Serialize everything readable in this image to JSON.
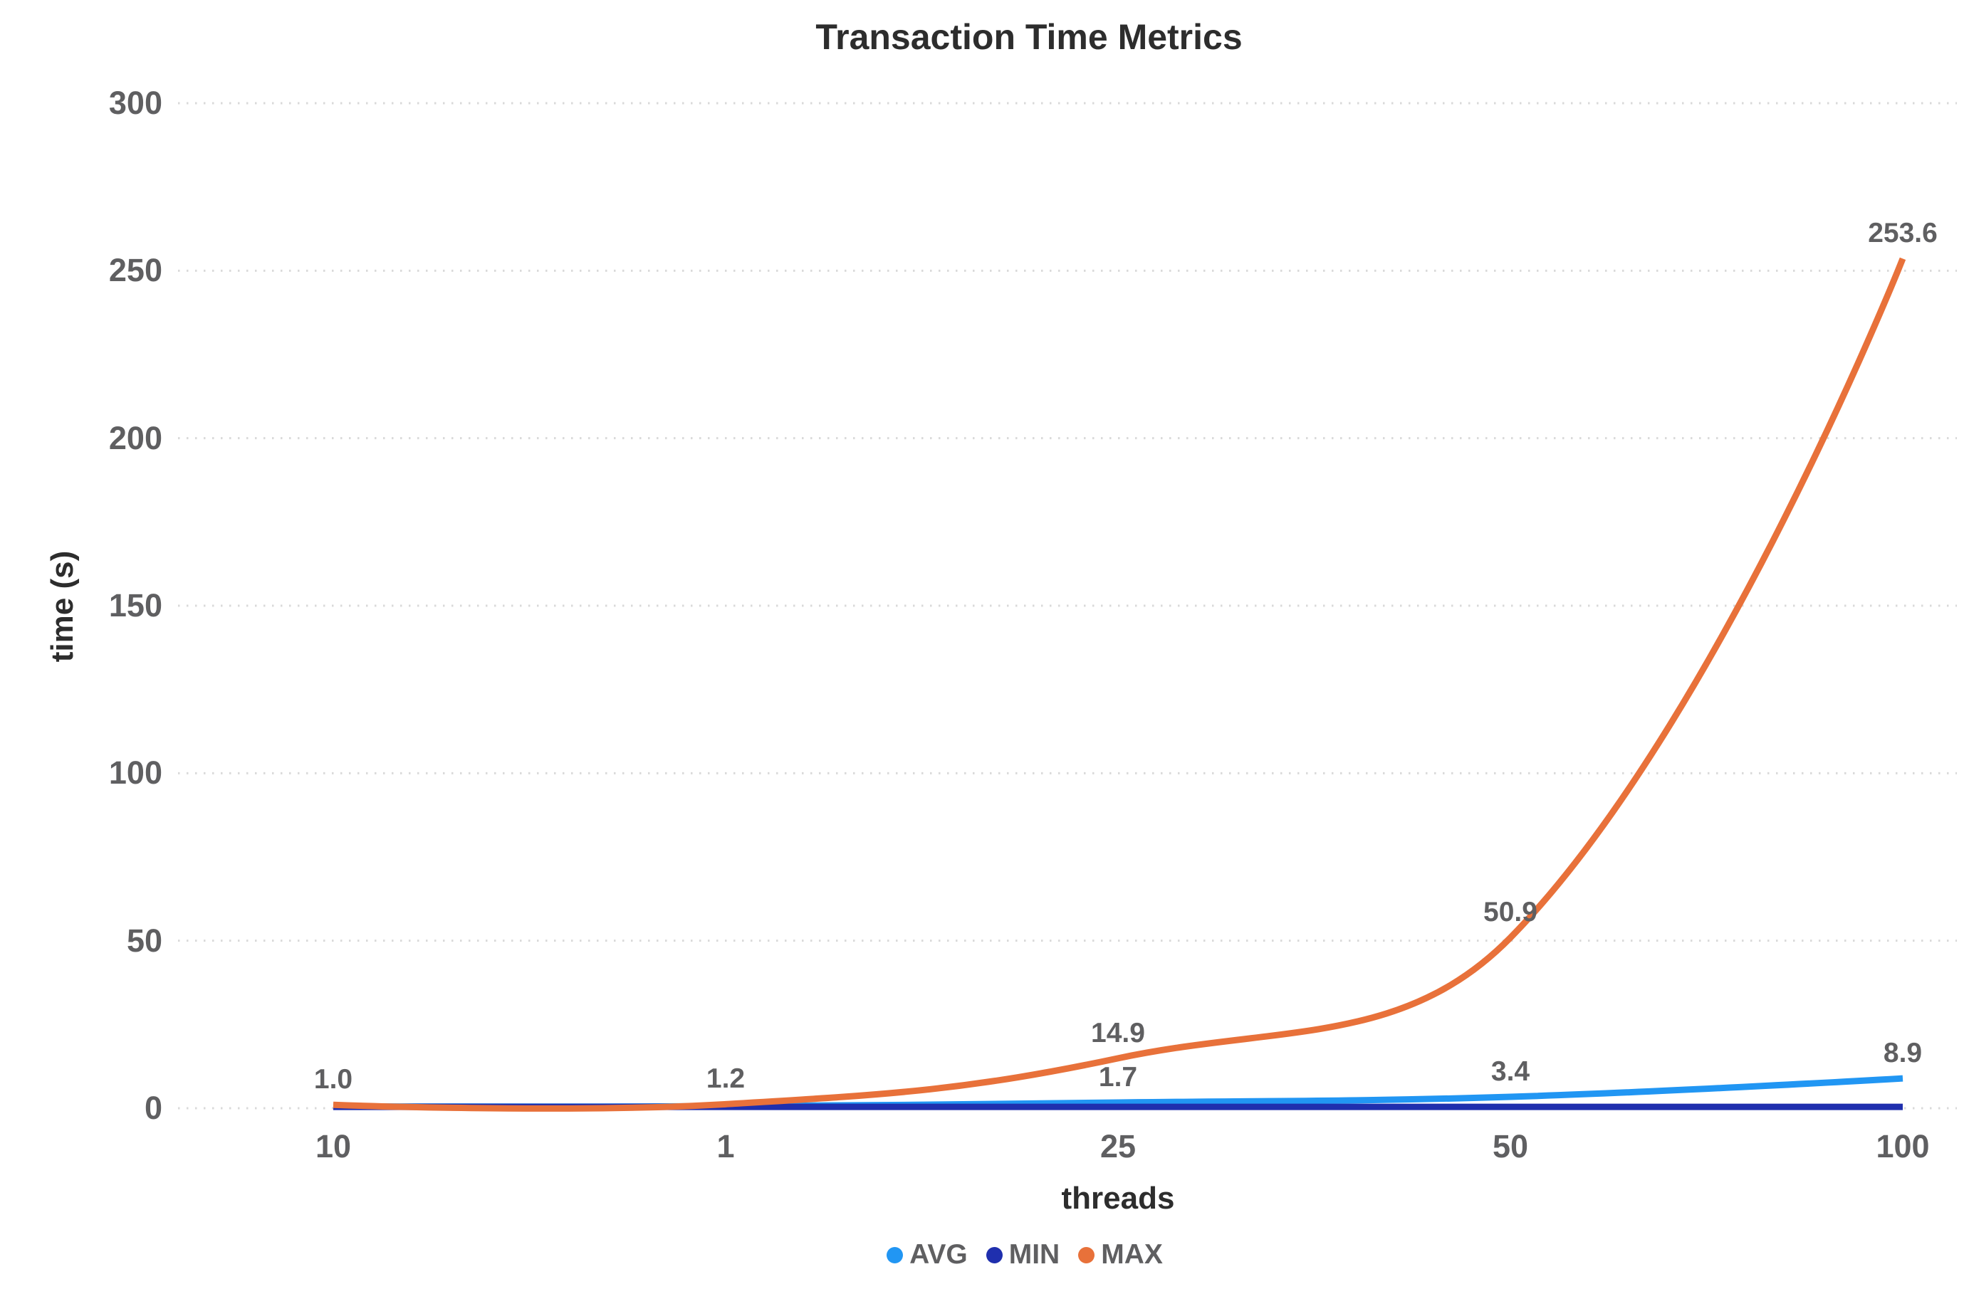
{
  "chart_data": {
    "type": "line",
    "title": "Transaction Time Metrics",
    "xlabel": "threads",
    "ylabel": "time (s)",
    "categories": [
      "10",
      "1",
      "25",
      "50",
      "100"
    ],
    "ylim": [
      0,
      300
    ],
    "yticks": [
      0,
      50,
      100,
      150,
      200,
      250,
      300
    ],
    "grid": "dotted-horizontal",
    "grid_color": "#d9d9d9",
    "legend_position": "bottom",
    "series": [
      {
        "name": "AVG",
        "color": "#2196f3",
        "values": [
          0.5,
          0.6,
          1.7,
          3.4,
          8.9
        ],
        "point_labels": [
          "",
          "",
          "1.7",
          "3.4",
          "8.9"
        ]
      },
      {
        "name": "MIN",
        "color": "#1f2fae",
        "values": [
          0.4,
          0.4,
          0.4,
          0.4,
          0.4
        ],
        "point_labels": [
          "",
          "",
          "",
          "",
          ""
        ]
      },
      {
        "name": "MAX",
        "color": "#e8713a",
        "values": [
          1.0,
          1.2,
          14.9,
          50.9,
          253.6
        ],
        "point_labels": [
          "1.0",
          "1.2",
          "14.9",
          "50.9",
          "253.6"
        ]
      }
    ]
  }
}
